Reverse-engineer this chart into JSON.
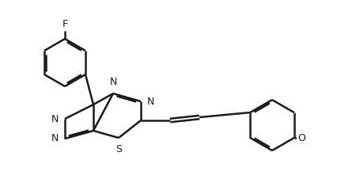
{
  "bg_color": "#ffffff",
  "line_color": "#1a1a1a",
  "line_width": 1.8,
  "font_size": 9,
  "figsize": [
    4.5,
    2.31
  ],
  "dpi": 100,
  "xlim": [
    0,
    4.5
  ],
  "ylim": [
    0,
    2.31
  ]
}
